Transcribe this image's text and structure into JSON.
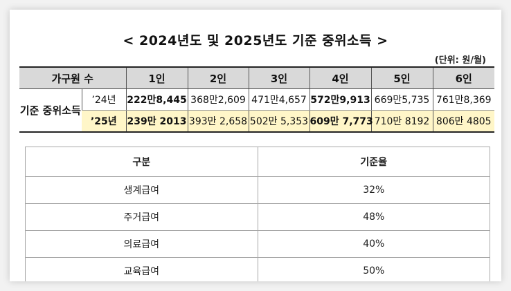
{
  "title": "< 2024년도 및 2025년도 기준 중위소득 >",
  "unit": "(단위: 원/월)",
  "income_table": {
    "headers": [
      "가구원 수",
      "1인",
      "2인",
      "3인",
      "4인",
      "5인",
      "6인"
    ],
    "row_label": "기준 중위소득",
    "rows": [
      {
        "year": "’24년",
        "values": [
          "222만8,445",
          "368만2,609",
          "471만4,657",
          "572만9,913",
          "669만5,735",
          "761만8,369"
        ]
      },
      {
        "year": "’25년",
        "values": [
          "239만 2013",
          "393만 2,658",
          "502만 5,353",
          "609만 7,773",
          "710만 8192",
          "806만 4805"
        ]
      }
    ]
  },
  "rates_table": {
    "headers": [
      "구분",
      "기준율"
    ],
    "rows": [
      {
        "name": "생계급여",
        "rate": "32%"
      },
      {
        "name": "주거급여",
        "rate": "48%"
      },
      {
        "name": "의료급여",
        "rate": "40%"
      },
      {
        "name": "교육급여",
        "rate": "50%"
      }
    ]
  },
  "colors": {
    "header_gray": "#d9d9d9",
    "highlight_yellow": "#fff6c8"
  }
}
